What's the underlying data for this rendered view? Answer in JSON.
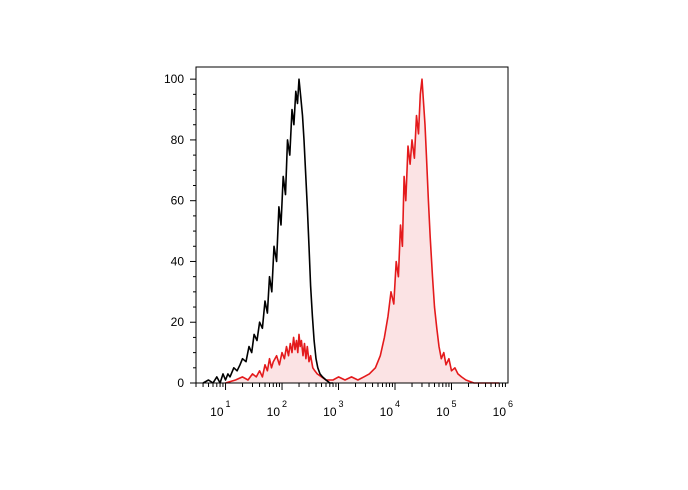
{
  "chart_data": {
    "type": "area",
    "title": "",
    "xlabel": "",
    "ylabel": "",
    "x_scale": "log",
    "xlim": [
      3,
      1000000
    ],
    "ylim": [
      0,
      104
    ],
    "x_tick_labels": [
      {
        "value": 10,
        "base": "10",
        "exp": "1"
      },
      {
        "value": 100,
        "base": "10",
        "exp": "2"
      },
      {
        "value": 1000,
        "base": "10",
        "exp": "3"
      },
      {
        "value": 10000,
        "base": "10",
        "exp": "4"
      },
      {
        "value": 100000,
        "base": "10",
        "exp": "5"
      },
      {
        "value": 1000000,
        "base": "10",
        "exp": "6"
      }
    ],
    "y_ticks": [
      {
        "value": 0,
        "label": "0"
      },
      {
        "value": 20,
        "label": "20"
      },
      {
        "value": 40,
        "label": "40"
      },
      {
        "value": 60,
        "label": "60"
      },
      {
        "value": 80,
        "label": "80"
      },
      {
        "value": 100,
        "label": "100"
      }
    ],
    "grid": false,
    "legend": "none",
    "series": [
      {
        "color": "#000000",
        "filled": false,
        "points": [
          [
            4,
            0
          ],
          [
            5,
            1
          ],
          [
            6,
            0
          ],
          [
            7,
            2
          ],
          [
            8,
            0
          ],
          [
            9,
            3
          ],
          [
            10,
            1
          ],
          [
            11,
            3
          ],
          [
            12,
            2
          ],
          [
            14,
            5
          ],
          [
            16,
            4
          ],
          [
            18,
            6
          ],
          [
            20,
            8
          ],
          [
            23,
            7
          ],
          [
            26,
            12
          ],
          [
            29,
            10
          ],
          [
            32,
            16
          ],
          [
            36,
            14
          ],
          [
            40,
            20
          ],
          [
            45,
            18
          ],
          [
            50,
            27
          ],
          [
            55,
            23
          ],
          [
            60,
            35
          ],
          [
            66,
            30
          ],
          [
            72,
            45
          ],
          [
            80,
            40
          ],
          [
            88,
            58
          ],
          [
            96,
            52
          ],
          [
            105,
            68
          ],
          [
            115,
            62
          ],
          [
            125,
            80
          ],
          [
            137,
            75
          ],
          [
            150,
            90
          ],
          [
            162,
            85
          ],
          [
            175,
            96
          ],
          [
            188,
            92
          ],
          [
            200,
            100
          ],
          [
            215,
            94
          ],
          [
            230,
            88
          ],
          [
            245,
            80
          ],
          [
            260,
            70
          ],
          [
            280,
            58
          ],
          [
            300,
            45
          ],
          [
            320,
            32
          ],
          [
            345,
            22
          ],
          [
            370,
            14
          ],
          [
            400,
            8
          ],
          [
            430,
            5
          ],
          [
            470,
            3
          ],
          [
            520,
            2
          ],
          [
            600,
            1
          ],
          [
            700,
            0
          ],
          [
            800,
            0
          ]
        ]
      },
      {
        "color": "#e41a1c",
        "fill": "#fbe3e4",
        "filled": true,
        "points": [
          [
            10,
            0
          ],
          [
            15,
            1
          ],
          [
            20,
            2
          ],
          [
            25,
            1
          ],
          [
            30,
            3
          ],
          [
            35,
            2
          ],
          [
            40,
            4
          ],
          [
            45,
            2
          ],
          [
            50,
            6
          ],
          [
            55,
            4
          ],
          [
            60,
            8
          ],
          [
            65,
            5
          ],
          [
            70,
            7
          ],
          [
            80,
            9
          ],
          [
            90,
            6
          ],
          [
            100,
            10
          ],
          [
            110,
            8
          ],
          [
            120,
            12
          ],
          [
            130,
            9
          ],
          [
            140,
            13
          ],
          [
            150,
            10
          ],
          [
            160,
            15
          ],
          [
            170,
            11
          ],
          [
            180,
            14
          ],
          [
            190,
            10
          ],
          [
            200,
            16
          ],
          [
            210,
            12
          ],
          [
            220,
            14
          ],
          [
            235,
            9
          ],
          [
            250,
            13
          ],
          [
            265,
            8
          ],
          [
            280,
            12
          ],
          [
            300,
            7
          ],
          [
            320,
            9
          ],
          [
            350,
            5
          ],
          [
            380,
            4
          ],
          [
            420,
            3
          ],
          [
            500,
            2
          ],
          [
            600,
            1
          ],
          [
            800,
            1
          ],
          [
            1000,
            2
          ],
          [
            1300,
            1
          ],
          [
            1700,
            2
          ],
          [
            2200,
            1
          ],
          [
            2800,
            2
          ],
          [
            3500,
            3
          ],
          [
            4500,
            5
          ],
          [
            5500,
            9
          ],
          [
            6500,
            15
          ],
          [
            7500,
            22
          ],
          [
            8500,
            30
          ],
          [
            9500,
            26
          ],
          [
            10500,
            40
          ],
          [
            11500,
            35
          ],
          [
            12500,
            52
          ],
          [
            13500,
            45
          ],
          [
            14500,
            68
          ],
          [
            15500,
            60
          ],
          [
            17000,
            78
          ],
          [
            18500,
            72
          ],
          [
            20000,
            80
          ],
          [
            22000,
            74
          ],
          [
            24000,
            88
          ],
          [
            26000,
            82
          ],
          [
            28000,
            95
          ],
          [
            30000,
            100
          ],
          [
            32000,
            92
          ],
          [
            34000,
            85
          ],
          [
            36000,
            75
          ],
          [
            39000,
            60
          ],
          [
            42000,
            48
          ],
          [
            46000,
            35
          ],
          [
            50000,
            25
          ],
          [
            55000,
            18
          ],
          [
            60000,
            12
          ],
          [
            66000,
            8
          ],
          [
            73000,
            10
          ],
          [
            80000,
            6
          ],
          [
            90000,
            8
          ],
          [
            100000,
            4
          ],
          [
            115000,
            5
          ],
          [
            130000,
            3
          ],
          [
            150000,
            2
          ],
          [
            180000,
            1
          ],
          [
            250000,
            0
          ],
          [
            400000,
            0
          ],
          [
            700000,
            0
          ]
        ]
      }
    ]
  }
}
